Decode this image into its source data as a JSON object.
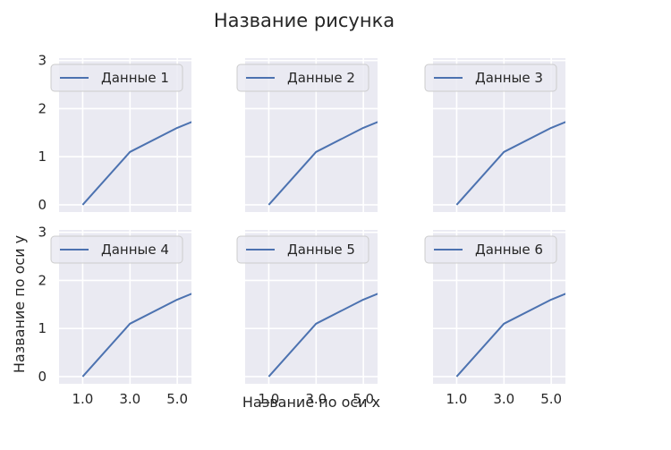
{
  "chart_data": {
    "type": "line",
    "title": "Название рисунка",
    "xlabel": "Название по оси x",
    "ylabel": "Название по оси y",
    "grid": true,
    "legend_position": "upper-left",
    "shared_axes": true,
    "xlim": [
      0.0,
      5.6
    ],
    "ylim": [
      -0.15,
      3.05
    ],
    "x_ticks": [
      1.0,
      3.0,
      5.0
    ],
    "x_tick_labels": [
      "1.0",
      "3.0",
      "5.0"
    ],
    "y_ticks": [
      0,
      1,
      2,
      3
    ],
    "y_tick_labels": [
      "0",
      "1",
      "2",
      "3"
    ],
    "colors": {
      "background": "#eaeaf2",
      "grid": "#ffffff",
      "line": "#4c72b0"
    },
    "panels": [
      {
        "series": [
          {
            "name": "Данные 1",
            "x": [
              1,
              3,
              5,
              6
            ],
            "y": [
              0,
              1.1,
              1.6,
              1.8
            ]
          }
        ]
      },
      {
        "series": [
          {
            "name": "Данные 2",
            "x": [
              1,
              3,
              5,
              6
            ],
            "y": [
              0,
              1.1,
              1.6,
              1.8
            ]
          }
        ]
      },
      {
        "series": [
          {
            "name": "Данные 3",
            "x": [
              1,
              3,
              5,
              6
            ],
            "y": [
              0,
              1.1,
              1.6,
              1.8
            ]
          }
        ]
      },
      {
        "series": [
          {
            "name": "Данные 4",
            "x": [
              1,
              3,
              5,
              6
            ],
            "y": [
              0,
              1.1,
              1.6,
              1.8
            ]
          }
        ]
      },
      {
        "series": [
          {
            "name": "Данные 5",
            "x": [
              1,
              3,
              5,
              6
            ],
            "y": [
              0,
              1.1,
              1.6,
              1.8
            ]
          }
        ]
      },
      {
        "series": [
          {
            "name": "Данные 6",
            "x": [
              1,
              3,
              5,
              6
            ],
            "y": [
              0,
              1.1,
              1.6,
              1.8
            ]
          }
        ]
      }
    ]
  }
}
